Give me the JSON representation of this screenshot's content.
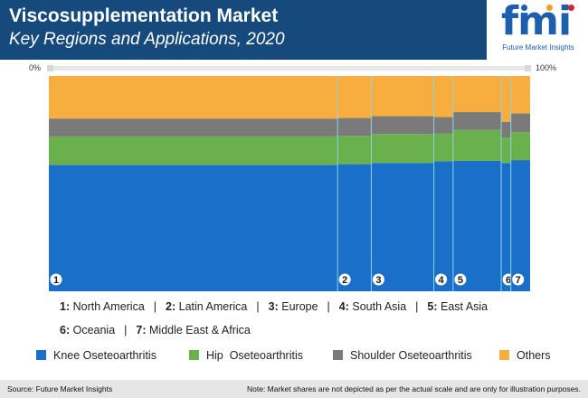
{
  "header": {
    "title": "Viscosupplementation Market",
    "subtitle": "Key Regions and Applications, 2020"
  },
  "logo": {
    "text": "fmi",
    "caption": "Future Market Insights"
  },
  "colors": {
    "header_bg": "#174a7c",
    "knee": "#1a6fc9",
    "hip": "#6ab04c",
    "shoulder": "#7a7a7a",
    "others": "#f7ae3f",
    "divider": "#8fd3e8"
  },
  "chart_data": {
    "type": "bar",
    "subtype": "marimekko",
    "axis": {
      "min_label": "0%",
      "max_label": "100%"
    },
    "categories": [
      "1",
      "2",
      "3",
      "4",
      "5",
      "6",
      "7"
    ],
    "widths": [
      60,
      7,
      13,
      4,
      10,
      2,
      4
    ],
    "series": [
      {
        "name": "Knee Oseteoarthritis",
        "values": [
          58.7,
          59.0,
          59.6,
          60.3,
          60.5,
          59.6,
          60.9
        ]
      },
      {
        "name": "Hip  Oseteoarthritis",
        "values": [
          13.2,
          13.2,
          13.4,
          13.0,
          14.4,
          11.8,
          13.0
        ]
      },
      {
        "name": "Shoulder Oseteoarthritis",
        "values": [
          8.3,
          8.3,
          8.3,
          7.6,
          8.3,
          7.3,
          8.7
        ]
      },
      {
        "name": "Others",
        "values": [
          19.8,
          19.5,
          18.7,
          19.1,
          16.8,
          21.3,
          17.4
        ]
      }
    ]
  },
  "region_legend": {
    "row1": [
      {
        "num": "1:",
        "name": "North America"
      },
      {
        "num": "2:",
        "name": "Latin America"
      },
      {
        "num": "3:",
        "name": "Europe"
      },
      {
        "num": "4:",
        "name": "South Asia"
      },
      {
        "num": "5:",
        "name": "East Asia"
      }
    ],
    "row2": [
      {
        "num": "6:",
        "name": "Oceania"
      },
      {
        "num": "7:",
        "name": "Middle East & Africa"
      }
    ],
    "separator": "|"
  },
  "series_legend": [
    "Knee Oseteoarthritis",
    "Hip  Oseteoarthritis",
    "Shoulder Oseteoarthritis",
    "Others"
  ],
  "footer": {
    "source": "Source: Future Market Insights",
    "note": "Note: Market shares are not depicted as per the actual scale and are only for illustration purposes."
  }
}
